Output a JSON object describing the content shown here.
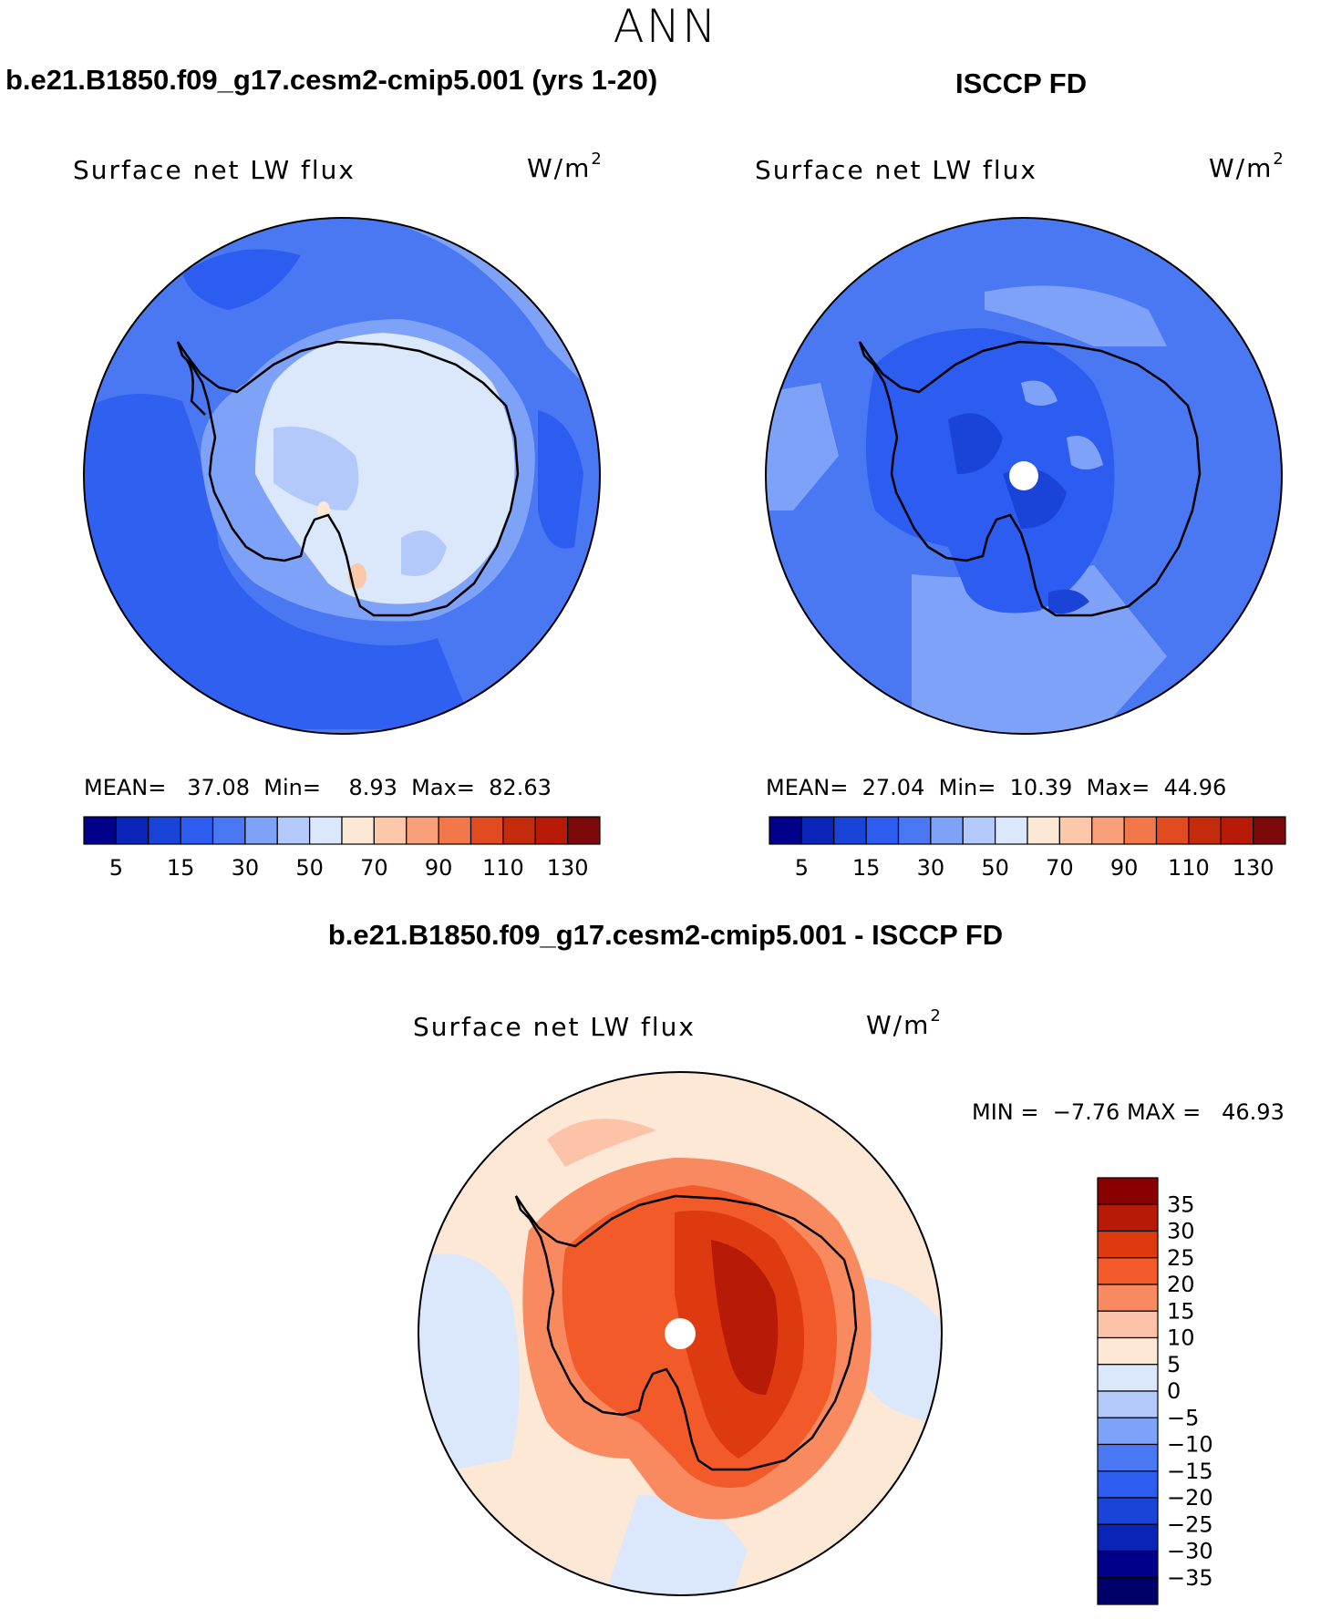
{
  "season": "ANN",
  "panel_a": {
    "title": "b.e21.B1850.f09_g17.cesm2-cmip5.001 (yrs 1-20)",
    "variable": "Surface net LW flux",
    "units": "W/m",
    "units_exp": "2",
    "stats": {
      "mean_label": "MEAN=",
      "mean": "37.08",
      "min_label": "Min=",
      "min": "8.93",
      "max_label": "Max=",
      "max": "82.63"
    }
  },
  "panel_b": {
    "title": "ISCCP FD",
    "variable": "Surface net LW flux",
    "units": "W/m",
    "units_exp": "2",
    "stats": {
      "mean_label": "MEAN=",
      "mean": "27.04",
      "min_label": "Min=",
      "min": "10.39",
      "max_label": "Max=",
      "max": "44.96"
    }
  },
  "panel_diff": {
    "title": "b.e21.B1850.f09_g17.cesm2-cmip5.001 - ISCCP FD",
    "variable": "Surface net LW flux",
    "units": "W/m",
    "units_exp": "2",
    "stats": {
      "min_label": "MIN =",
      "min": "−7.76",
      "max_label": "MAX =",
      "max": "46.93"
    }
  },
  "chart_data": [
    {
      "type": "heatmap",
      "title": "b.e21.B1850.f09_g17.cesm2-cmip5.001 (yrs 1-20)",
      "variable": "Surface net LW flux",
      "units": "W/m2",
      "projection": "south polar stereographic",
      "colorbar": {
        "orientation": "horizontal",
        "tick_labels": [
          "5",
          "15",
          "30",
          "50",
          "70",
          "90",
          "110",
          "130"
        ],
        "colors": [
          "#00008b",
          "#0b24b8",
          "#1a44d8",
          "#2d5df0",
          "#4a78f2",
          "#7ea2f8",
          "#b3c9fa",
          "#dbe8fb",
          "#fde8d6",
          "#fcc8aa",
          "#f9a07a",
          "#f2784a",
          "#e24a20",
          "#c42a0c",
          "#b81a08",
          "#7d0a0a"
        ]
      },
      "mean": 37.08,
      "min": 8.93,
      "max": 82.63
    },
    {
      "type": "heatmap",
      "title": "ISCCP FD",
      "variable": "Surface net LW flux",
      "units": "W/m2",
      "projection": "south polar stereographic",
      "colorbar": {
        "orientation": "horizontal",
        "tick_labels": [
          "5",
          "15",
          "30",
          "50",
          "70",
          "90",
          "110",
          "130"
        ],
        "colors": [
          "#00008b",
          "#0b24b8",
          "#1a44d8",
          "#2d5df0",
          "#4a78f2",
          "#7ea2f8",
          "#b3c9fa",
          "#dbe8fb",
          "#fde8d6",
          "#fcc8aa",
          "#f9a07a",
          "#f2784a",
          "#e24a20",
          "#c42a0c",
          "#b81a08",
          "#7d0a0a"
        ]
      },
      "mean": 27.04,
      "min": 10.39,
      "max": 44.96
    },
    {
      "type": "heatmap",
      "title": "b.e21.B1850.f09_g17.cesm2-cmip5.001 - ISCCP FD",
      "variable": "Surface net LW flux",
      "units": "W/m2",
      "projection": "south polar stereographic",
      "colorbar": {
        "orientation": "vertical",
        "tick_labels": [
          "35",
          "30",
          "25",
          "20",
          "15",
          "10",
          "5",
          "0",
          "−5",
          "−10",
          "−15",
          "−20",
          "−25",
          "−30",
          "−35"
        ],
        "colors": [
          "#8a0000",
          "#b81a08",
          "#de3a10",
          "#f25a2a",
          "#f98a60",
          "#fcc3a8",
          "#fde8d6",
          "#dbe8fb",
          "#b3c9fa",
          "#7ea2f8",
          "#4a78f2",
          "#2d5df0",
          "#1a44d8",
          "#0b24b8",
          "#00008b",
          "#00006a"
        ]
      },
      "min": -7.76,
      "max": 46.93
    }
  ]
}
